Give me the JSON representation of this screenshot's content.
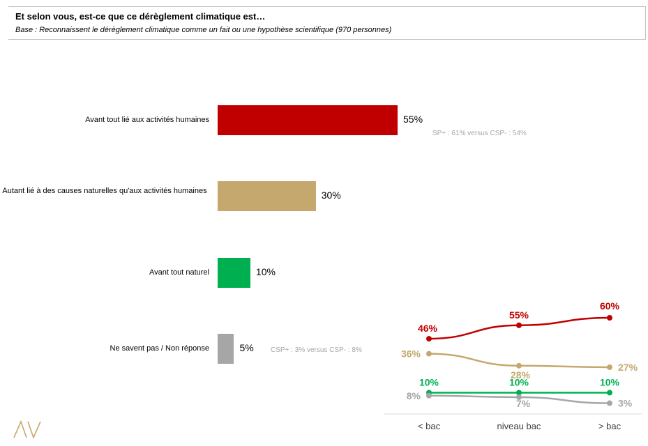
{
  "header": {
    "title": "Et selon vous, est-ce que ce dérèglement climatique est…",
    "subtitle": "Base : Reconnaissent le dérèglement climatique comme un fait ou une hypothèse scientifique (970 personnes)"
  },
  "notes": {
    "csp_humaines": "SP+ : 61% versus CSP- : 54%",
    "csp_nsp": "CSP+ : 3% versus CSP- : 8%"
  },
  "colors": {
    "red": "#c00000",
    "tan": "#c4a86e",
    "green": "#00b050",
    "gray": "#a6a6a6"
  },
  "chart_data": [
    {
      "type": "bar",
      "orientation": "horizontal",
      "categories": [
        "Avant tout lié aux activités humaines",
        "Autant lié à des causes naturelles qu'aux activités humaines",
        "Avant tout naturel",
        "Ne savent pas / Non réponse"
      ],
      "values": [
        55,
        30,
        10,
        5
      ],
      "value_labels": [
        "55%",
        "30%",
        "10%",
        "5%"
      ]
    },
    {
      "type": "line",
      "categories": [
        "< bac",
        "niveau bac",
        "> bac"
      ],
      "series": [
        {
          "values": [
            46,
            55,
            60
          ],
          "labels": [
            "46%",
            "55%",
            "60%"
          ],
          "color": "#c00000"
        },
        {
          "values": [
            36,
            28,
            27
          ],
          "labels": [
            "36%",
            "28%",
            "27%"
          ],
          "color": "#c4a86e"
        },
        {
          "values": [
            10,
            10,
            10
          ],
          "labels": [
            "10%",
            "10%",
            "10%"
          ],
          "color": "#00b050"
        },
        {
          "values": [
            8,
            7,
            3
          ],
          "labels": [
            "8%",
            "7%",
            "3%"
          ],
          "color": "#a6a6a6"
        }
      ]
    }
  ]
}
